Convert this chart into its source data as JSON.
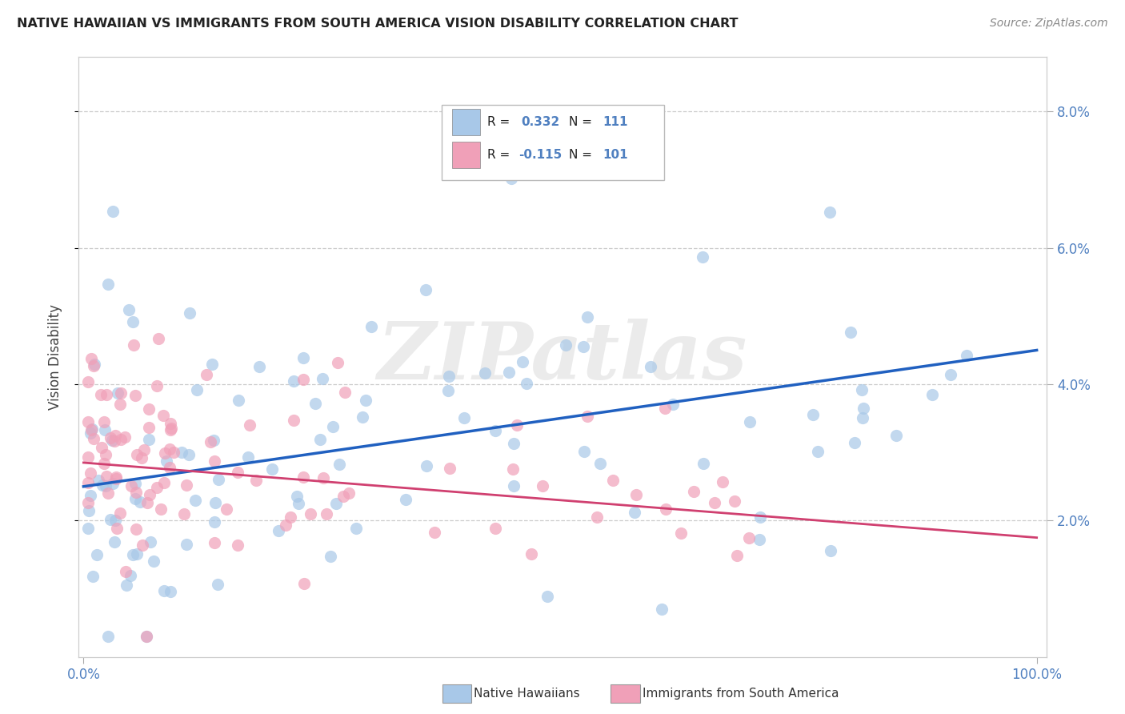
{
  "title": "NATIVE HAWAIIAN VS IMMIGRANTS FROM SOUTH AMERICA VISION DISABILITY CORRELATION CHART",
  "source": "Source: ZipAtlas.com",
  "ylabel": "Vision Disability",
  "xlim": [
    0,
    100
  ],
  "ylim": [
    0,
    8.8
  ],
  "yticks": [
    2.0,
    4.0,
    6.0,
    8.0
  ],
  "xtick_positions": [
    0,
    100
  ],
  "xtick_labels": [
    "0.0%",
    "100.0%"
  ],
  "legend_r1": "R = ",
  "legend_v1": "0.332",
  "legend_n1_label": "N = ",
  "legend_n1_val": "111",
  "legend_r2": "R = ",
  "legend_v2": "-0.115",
  "legend_n2_label": "N = ",
  "legend_n2_val": "101",
  "color_blue": "#a8c8e8",
  "color_pink": "#f0a0b8",
  "line_blue": "#2060c0",
  "line_pink": "#d04070",
  "tick_color": "#5080c0",
  "background_color": "#ffffff",
  "watermark_text": "ZIPatlas",
  "watermark_color": "#d8d8d8",
  "grid_color": "#cccccc",
  "blue_line_start_y": 2.5,
  "blue_line_end_y": 4.5,
  "pink_line_start_y": 2.85,
  "pink_line_end_y": 1.75
}
